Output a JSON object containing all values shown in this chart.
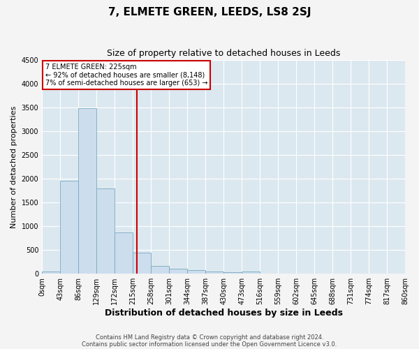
{
  "title": "7, ELMETE GREEN, LEEDS, LS8 2SJ",
  "subtitle": "Size of property relative to detached houses in Leeds",
  "xlabel": "Distribution of detached houses by size in Leeds",
  "ylabel": "Number of detached properties",
  "bar_color": "#ccdded",
  "bar_edge_color": "#7aaabf",
  "red_line_color": "#cc0000",
  "red_line_x": 225,
  "annotation_text": "7 ELMETE GREEN: 225sqm\n← 92% of detached houses are smaller (8,148)\n7% of semi-detached houses are larger (653) →",
  "annotation_box_facecolor": "#ffffff",
  "annotation_box_edgecolor": "#cc0000",
  "footnote1": "Contains HM Land Registry data © Crown copyright and database right 2024.",
  "footnote2": "Contains public sector information licensed under the Open Government Licence v3.0.",
  "bin_edges": [
    0,
    43,
    86,
    129,
    172,
    215,
    258,
    301,
    344,
    387,
    430,
    473,
    516,
    559,
    602,
    645,
    688,
    731,
    774,
    817,
    860
  ],
  "bar_heights": [
    50,
    1950,
    3480,
    1800,
    870,
    450,
    170,
    110,
    80,
    50,
    35,
    40,
    5,
    3,
    2,
    2,
    1,
    1,
    1,
    1
  ],
  "ylim": [
    0,
    4500
  ],
  "yticks": [
    0,
    500,
    1000,
    1500,
    2000,
    2500,
    3000,
    3500,
    4000,
    4500
  ],
  "background_color": "#dce8f0",
  "fig_background": "#f4f4f4",
  "grid_color": "#ffffff",
  "title_fontsize": 11,
  "subtitle_fontsize": 9,
  "ylabel_fontsize": 8,
  "xlabel_fontsize": 9,
  "tick_fontsize": 7,
  "annotation_fontsize": 7,
  "footnote_fontsize": 6
}
